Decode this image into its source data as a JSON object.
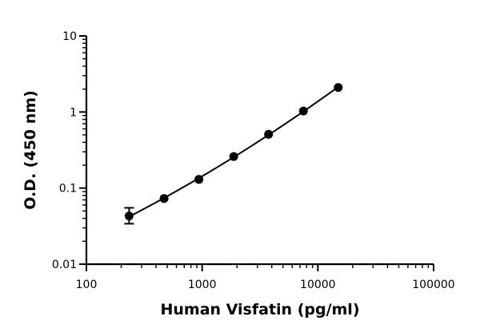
{
  "chart_data": {
    "type": "scatter",
    "xlabel": "Human Visfatin (pg/ml)",
    "ylabel": "O.D. (450 nm)",
    "xscale": "log",
    "yscale": "log",
    "xlim": [
      100,
      100000
    ],
    "ylim": [
      0.01,
      10
    ],
    "x_ticks": [
      {
        "value": 100,
        "label": "100"
      },
      {
        "value": 1000,
        "label": "1000"
      },
      {
        "value": 10000,
        "label": "10000"
      },
      {
        "value": 100000,
        "label": "100000"
      }
    ],
    "y_ticks": [
      {
        "value": 0.01,
        "label": "0.01"
      },
      {
        "value": 0.1,
        "label": "0.1"
      },
      {
        "value": 1,
        "label": "1"
      },
      {
        "value": 10,
        "label": "10"
      }
    ],
    "grid": false,
    "legend": "none",
    "series": [
      {
        "x": [
          234,
          469,
          938,
          1875,
          3750,
          7500,
          15000
        ],
        "y": [
          0.043,
          0.073,
          0.13,
          0.26,
          0.51,
          1.03,
          2.1
        ],
        "y_err_low": [
          0.034,
          null,
          null,
          null,
          null,
          null,
          null
        ],
        "y_err_high": [
          0.055,
          null,
          null,
          null,
          null,
          null,
          null
        ],
        "fit_curve": true
      }
    ],
    "color": "#000000"
  }
}
